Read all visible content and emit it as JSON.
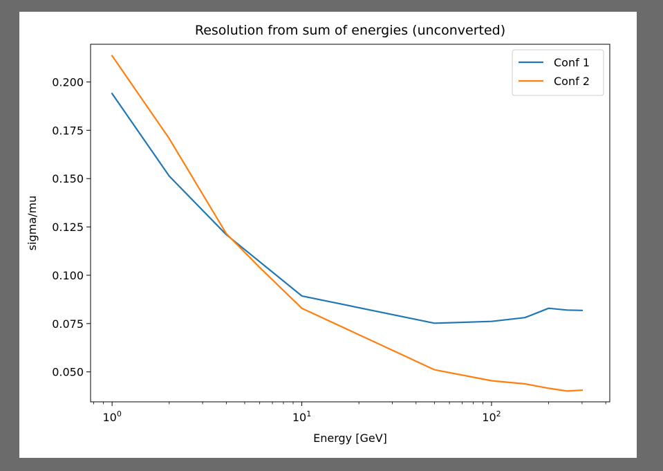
{
  "chart_data": {
    "type": "line",
    "title": "Resolution from sum of energies (unconverted)",
    "xlabel": "Energy [GeV]",
    "ylabel": "sigma/mu",
    "xscale": "log",
    "xlim": [
      0.77,
      420
    ],
    "ylim": [
      0.0345,
      0.2195
    ],
    "yticks": [
      0.05,
      0.075,
      0.1,
      0.125,
      0.15,
      0.175,
      0.2
    ],
    "ytick_labels": [
      "0.050",
      "0.075",
      "0.100",
      "0.125",
      "0.150",
      "0.175",
      "0.200"
    ],
    "xticks": [
      {
        "base": "10",
        "exp": "0",
        "value": 1
      },
      {
        "base": "10",
        "exp": "1",
        "value": 10
      },
      {
        "base": "10",
        "exp": "2",
        "value": 100
      }
    ],
    "legend_position": "top-right",
    "grid": false,
    "series": [
      {
        "name": "Conf 1",
        "color": "#1f77b4",
        "x": [
          1,
          2,
          4,
          10,
          50,
          100,
          150,
          200,
          250,
          300
        ],
        "y": [
          0.194,
          0.1513,
          0.121,
          0.0893,
          0.0752,
          0.0761,
          0.0781,
          0.0829,
          0.082,
          0.0818
        ]
      },
      {
        "name": "Conf 2",
        "color": "#ff7f0e",
        "x": [
          1,
          2,
          4,
          6,
          10,
          50,
          100,
          150,
          200,
          250,
          300
        ],
        "y": [
          0.2136,
          0.1707,
          0.1215,
          0.104,
          0.0829,
          0.0511,
          0.0454,
          0.0438,
          0.0415,
          0.0401,
          0.0405
        ]
      }
    ]
  }
}
